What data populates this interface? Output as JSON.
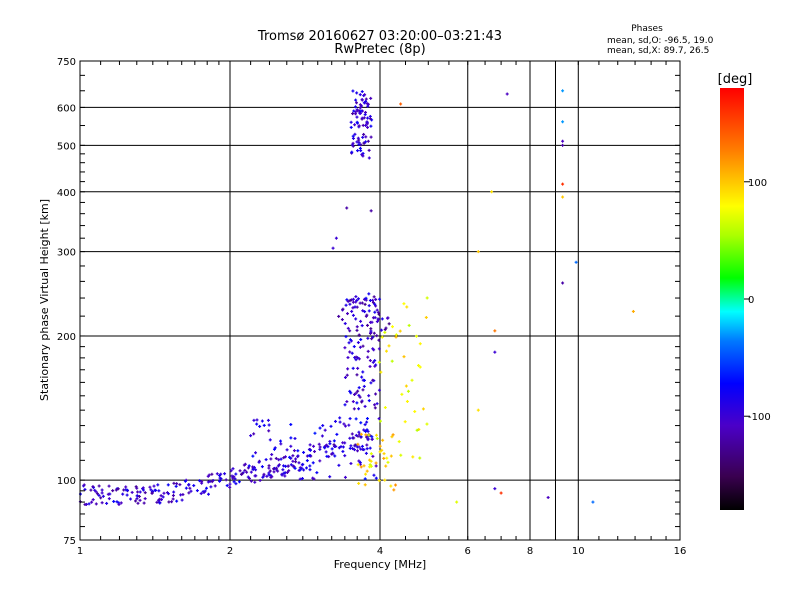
{
  "chart_data": {
    "type": "scatter",
    "title": "Tromsø 20160627 03:20:00–03:21:43",
    "subtitle": "RwPretec (8p)",
    "xlabel": "Frequency [MHz]",
    "ylabel": "Stationary phase Virtual Height [km]",
    "x_scale": "log",
    "y_scale": "log",
    "xlim": [
      1,
      16
    ],
    "ylim": [
      75,
      750
    ],
    "x_ticks": [
      1,
      2,
      4,
      8,
      16
    ],
    "x_tick_labels": [
      "1",
      "2",
      "4",
      "8",
      "16"
    ],
    "x_minor_ticks": [
      6,
      9,
      10
    ],
    "x_minor_tick_labels": [
      "6",
      "",
      "10"
    ],
    "y_ticks": [
      75,
      100,
      200,
      300,
      400,
      500,
      600,
      750
    ],
    "y_tick_labels": [
      "75",
      "100",
      "200",
      "300",
      "400",
      "500",
      "600",
      "750"
    ],
    "grid": true,
    "legend": {
      "title": "Phases",
      "lines": [
        "mean, sd,O: -96.5, 19.0",
        "mean, sd,X:  89.7, 26.5"
      ],
      "placement": "top-right"
    },
    "colorbar": {
      "label": "[deg]",
      "range": [
        -180,
        180
      ],
      "ticks": [
        100,
        0,
        -100
      ],
      "tick_labels": [
        "100",
        "0",
        "-100"
      ]
    },
    "point_groups": [
      {
        "x_range": [
          1.0,
          1.9
        ],
        "height_fn": "low_layer",
        "count": 130,
        "phase_mean": -100
      },
      {
        "x_range": [
          1.9,
          3.9
        ],
        "height_fn": "mid_layer",
        "count": 170,
        "phase_mean": -100
      },
      {
        "x_range": [
          2.2,
          4.0
        ],
        "y_range": [
          100,
          135
        ],
        "count": 90,
        "phase_mean": -90
      },
      {
        "x_range": [
          3.4,
          4.0
        ],
        "y_range": [
          140,
          245
        ],
        "count": 120,
        "phase_mean": -100
      },
      {
        "x_range": [
          3.5,
          3.85
        ],
        "y_range": [
          470,
          650
        ],
        "count": 90,
        "phase_mean": -100
      },
      {
        "x_range": [
          3.3,
          4.2
        ],
        "y_range": [
          200,
          240
        ],
        "count": 30,
        "phase_mean": -110
      },
      {
        "x_range": [
          3.8,
          5.0
        ],
        "y_range": [
          105,
          245
        ],
        "count": 50,
        "phase_mean": 80
      },
      {
        "x_range": [
          3.6,
          4.3
        ],
        "y_range": [
          95,
          130
        ],
        "count": 25,
        "phase_mean": 95
      }
    ],
    "isolated_points": [
      {
        "x": 3.22,
        "y": 305,
        "phase": -100
      },
      {
        "x": 3.27,
        "y": 320,
        "phase": -100
      },
      {
        "x": 3.43,
        "y": 370,
        "phase": -120
      },
      {
        "x": 3.84,
        "y": 365,
        "phase": -120
      },
      {
        "x": 4.4,
        "y": 610,
        "phase": 140
      },
      {
        "x": 6.3,
        "y": 300,
        "phase": 100
      },
      {
        "x": 6.7,
        "y": 400,
        "phase": 90
      },
      {
        "x": 6.8,
        "y": 205,
        "phase": 130
      },
      {
        "x": 6.8,
        "y": 185,
        "phase": -100
      },
      {
        "x": 6.3,
        "y": 140,
        "phase": 90
      },
      {
        "x": 6.8,
        "y": 96,
        "phase": -100
      },
      {
        "x": 7.0,
        "y": 94,
        "phase": 160
      },
      {
        "x": 5.7,
        "y": 90,
        "phase": 70
      },
      {
        "x": 7.2,
        "y": 640,
        "phase": -110
      },
      {
        "x": 9.3,
        "y": 650,
        "phase": -30
      },
      {
        "x": 9.3,
        "y": 560,
        "phase": -30
      },
      {
        "x": 9.3,
        "y": 500,
        "phase": -120
      },
      {
        "x": 9.3,
        "y": 510,
        "phase": -110
      },
      {
        "x": 9.3,
        "y": 415,
        "phase": 160
      },
      {
        "x": 9.3,
        "y": 390,
        "phase": 100
      },
      {
        "x": 9.3,
        "y": 258,
        "phase": -120
      },
      {
        "x": 9.9,
        "y": 285,
        "phase": -40
      },
      {
        "x": 8.7,
        "y": 92,
        "phase": -110
      },
      {
        "x": 10.7,
        "y": 90,
        "phase": -40
      },
      {
        "x": 12.9,
        "y": 225,
        "phase": 110
      }
    ]
  }
}
